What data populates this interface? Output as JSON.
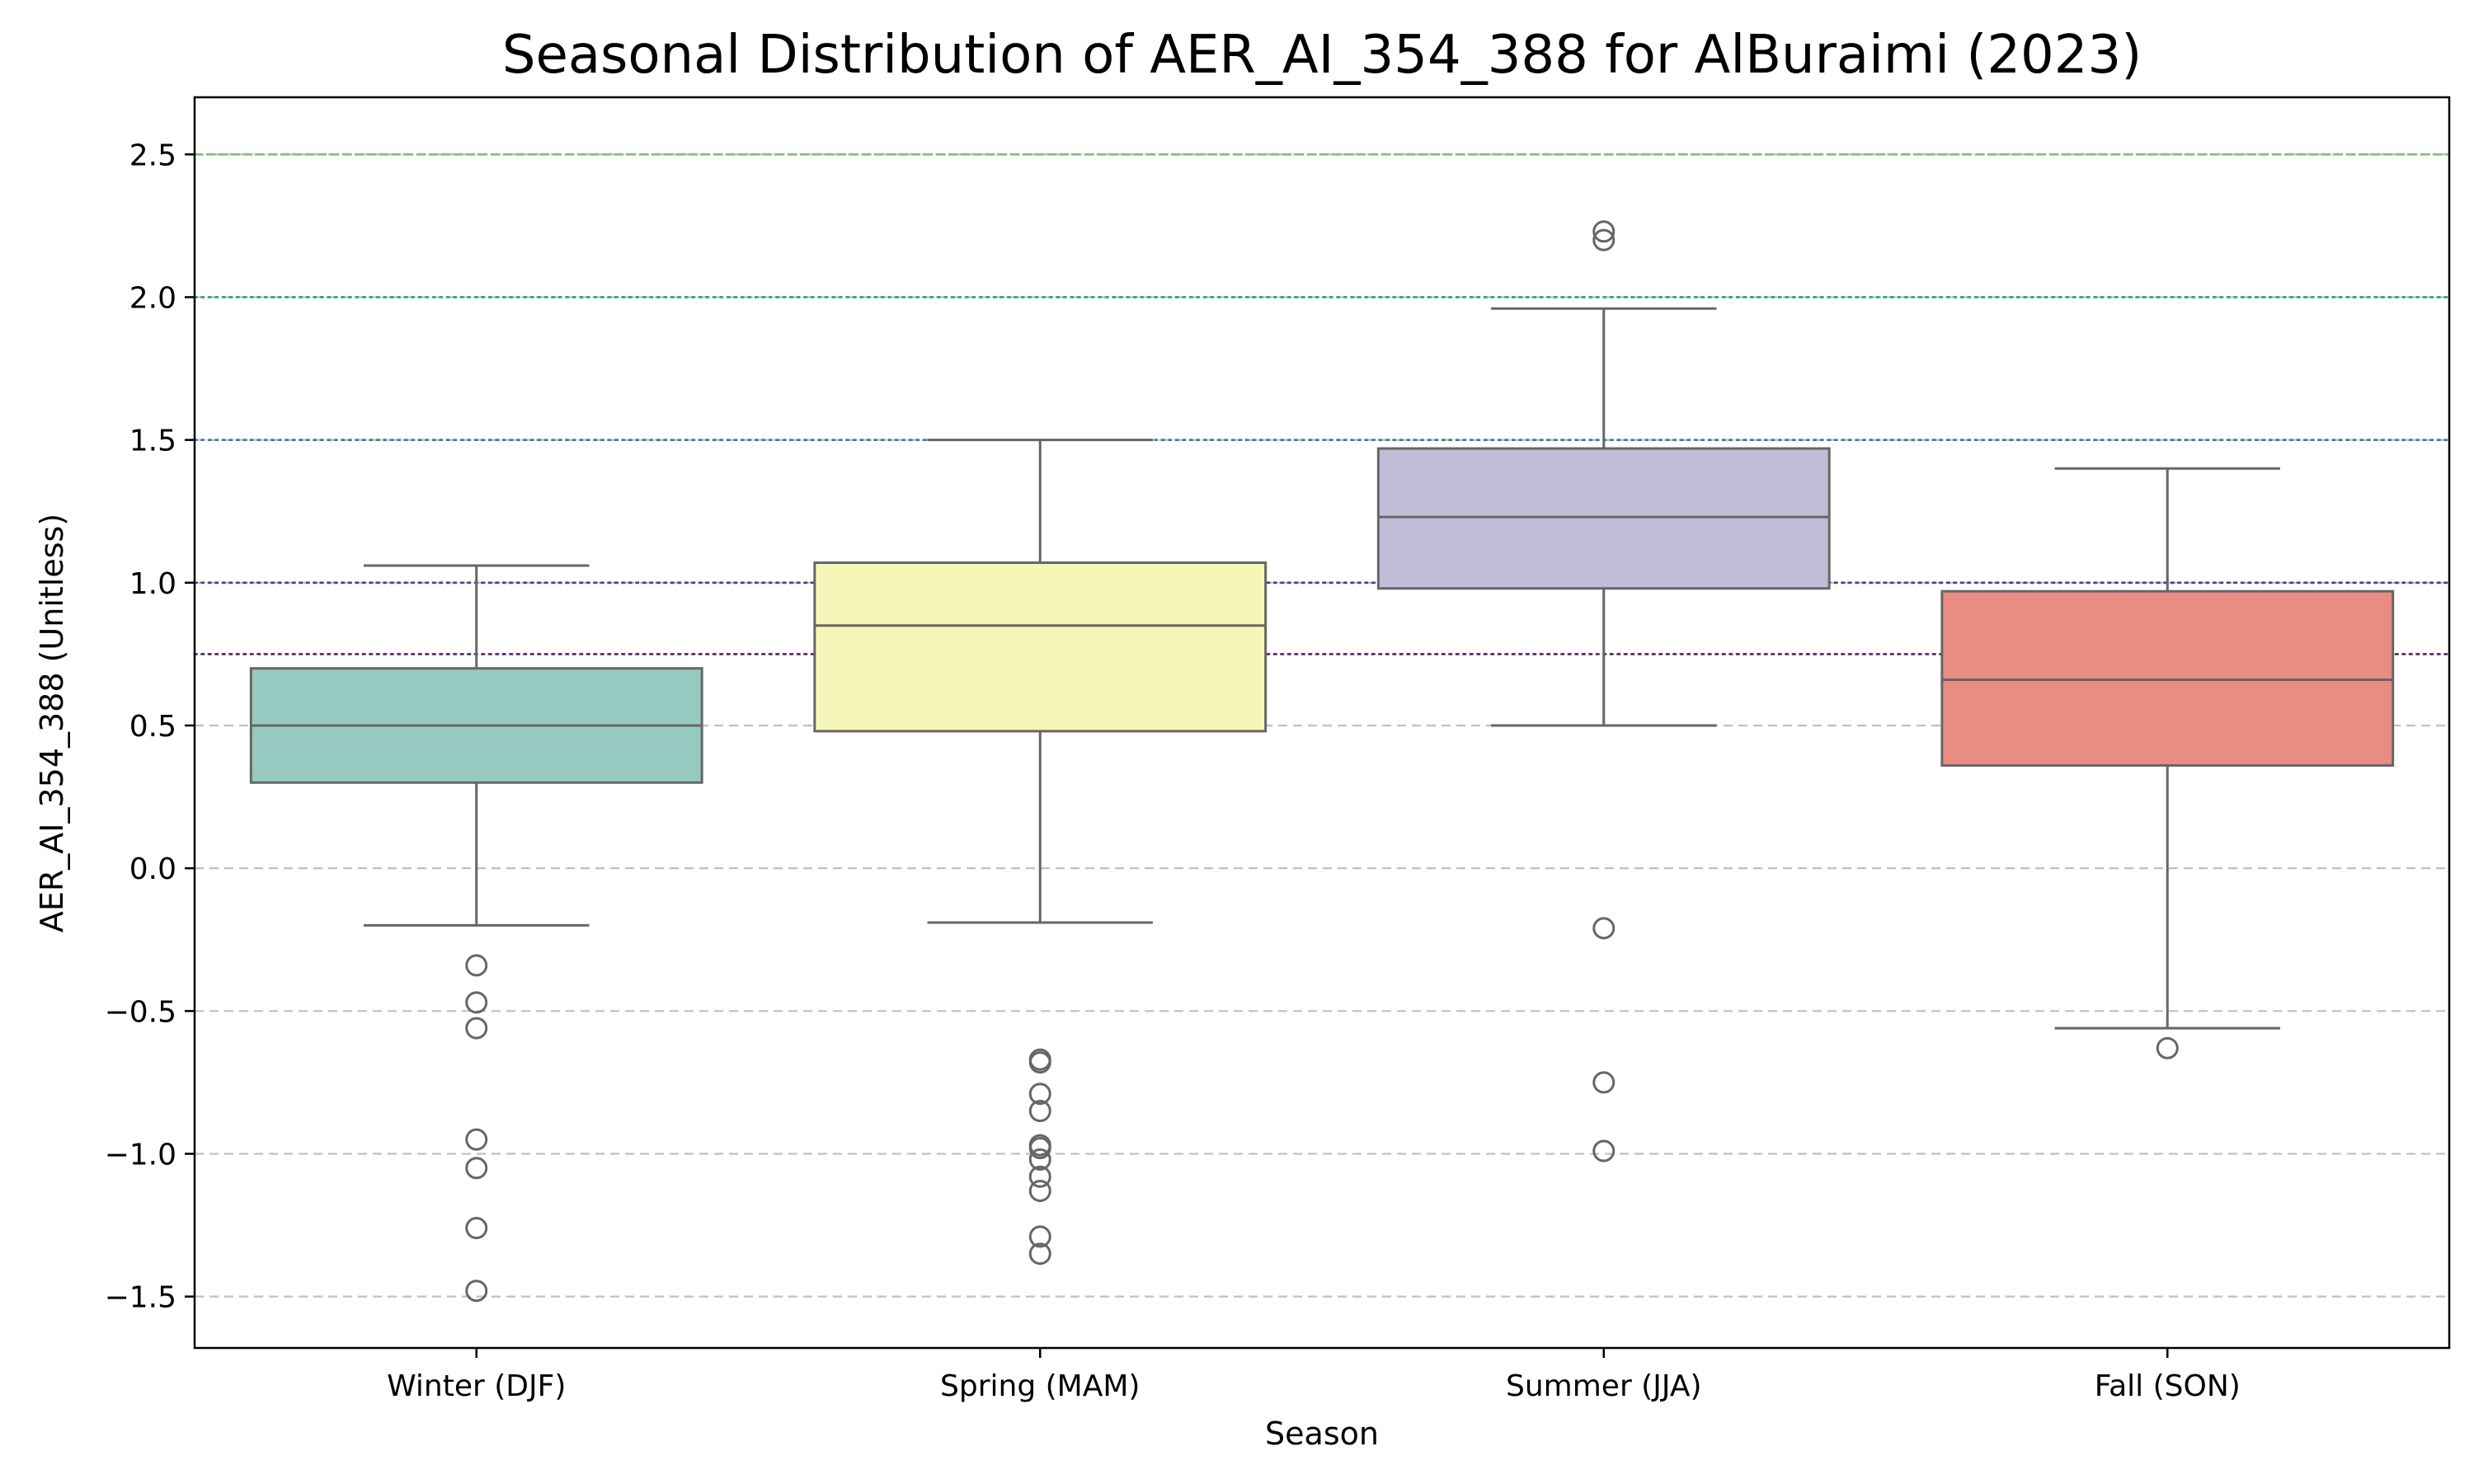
{
  "chart_data": {
    "type": "box",
    "title": "Seasonal Distribution of AER_AI_354_388 for AlBuraimi (2023)",
    "xlabel": "Season",
    "ylabel": "AER_AI_354_388 (Unitless)",
    "ylim": [
      -1.68,
      2.7
    ],
    "yticks": [
      -1.5,
      -1.0,
      -0.5,
      0.0,
      0.5,
      1.0,
      1.5,
      2.0,
      2.5
    ],
    "ytick_labels": [
      "−1.5",
      "−1.0",
      "−0.5",
      "0.0",
      "0.5",
      "1.0",
      "1.5",
      "2.0",
      "2.5"
    ],
    "grid": "horizontal dashed",
    "categories": [
      "Winter (DJF)",
      "Spring (MAM)",
      "Summer (JJA)",
      "Fall (SON)"
    ],
    "boxes": [
      {
        "category": "Winter (DJF)",
        "color": "#96cac0",
        "whisker_low": -0.2,
        "q1": 0.3,
        "median": 0.5,
        "q3": 0.7,
        "whisker_high": 1.06,
        "outliers": [
          -0.34,
          -0.47,
          -0.56,
          -0.95,
          -1.05,
          -1.26,
          -1.48
        ]
      },
      {
        "category": "Spring (MAM)",
        "color": "#f7f6b9",
        "whisker_low": -0.19,
        "q1": 0.48,
        "median": 0.85,
        "q3": 1.07,
        "whisker_high": 1.5,
        "outliers": [
          -0.67,
          -0.68,
          -0.79,
          -0.85,
          -0.97,
          -0.98,
          -1.02,
          -1.08,
          -1.13,
          -1.29,
          -1.35
        ]
      },
      {
        "category": "Summer (JJA)",
        "color": "#c1bdd6",
        "whisker_low": 0.5,
        "q1": 0.98,
        "median": 1.23,
        "q3": 1.47,
        "whisker_high": 1.96,
        "outliers": [
          2.23,
          2.2,
          -0.21,
          -0.75,
          -0.99
        ]
      },
      {
        "category": "Fall (SON)",
        "color": "#e98d82",
        "whisker_low": -0.56,
        "q1": 0.36,
        "median": 0.66,
        "q3": 0.97,
        "whisker_high": 1.4,
        "outliers": [
          -0.63
        ]
      }
    ],
    "reference_lines": [
      {
        "value": 2.5,
        "color": "#7cc278",
        "style": "dashed"
      },
      {
        "value": 2.0,
        "color": "#2ea88c",
        "style": "dotted"
      },
      {
        "value": 1.5,
        "color": "#3b7f9d",
        "style": "dotted"
      },
      {
        "value": 1.0,
        "color": "#3d4b8c",
        "style": "dotted"
      },
      {
        "value": 0.75,
        "color": "#5a2a6b",
        "style": "dotted"
      }
    ],
    "colors": {
      "box_edge": "#666666",
      "grid": "#c0c0c0",
      "axis": "#000000"
    }
  }
}
